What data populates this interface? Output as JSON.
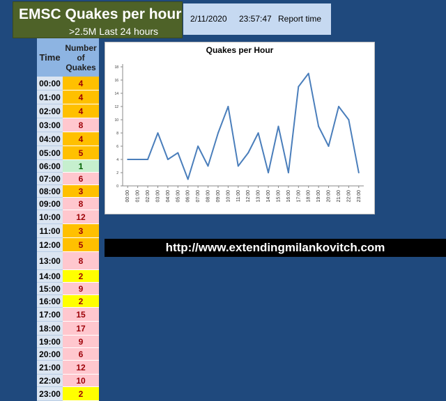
{
  "header": {
    "title": "EMSC Quakes per hour UTC",
    "subtitle": ">2.5M Last 24 hours",
    "report_date": "2/11/2020",
    "report_time": "23:57:47",
    "report_label": "Report time"
  },
  "table": {
    "col_time": "Time",
    "col_count": "Number of Quakes",
    "rows": [
      {
        "time": "00:00",
        "count": "4"
      },
      {
        "time": "01:00",
        "count": "4"
      },
      {
        "time": "02:00",
        "count": "4"
      },
      {
        "time": "03:00",
        "count": "8"
      },
      {
        "time": "04:00",
        "count": "4"
      },
      {
        "time": "05:00",
        "count": "5"
      },
      {
        "time": "06:00",
        "count": "1"
      },
      {
        "time": "07:00",
        "count": "6"
      },
      {
        "time": "08:00",
        "count": "3"
      },
      {
        "time": "09:00",
        "count": "8"
      },
      {
        "time": "10:00",
        "count": "12"
      },
      {
        "time": "11:00",
        "count": "3"
      },
      {
        "time": "12:00",
        "count": "5"
      },
      {
        "time": "13:00",
        "count": "8"
      },
      {
        "time": "14:00",
        "count": "2"
      },
      {
        "time": "15:00",
        "count": "9"
      },
      {
        "time": "16:00",
        "count": "2"
      },
      {
        "time": "17:00",
        "count": "15"
      },
      {
        "time": "18:00",
        "count": "17"
      },
      {
        "time": "19:00",
        "count": "9"
      },
      {
        "time": "20:00",
        "count": "6"
      },
      {
        "time": "21:00",
        "count": "12"
      },
      {
        "time": "22:00",
        "count": "10"
      },
      {
        "time": "23:00",
        "count": "2"
      }
    ]
  },
  "colors": {
    "background": "#1f497d",
    "title_bg": "#4e6228",
    "report_bg": "#c6d9f1",
    "header_cell_bg": "#8db4e2",
    "time_cell_bg": "#dbe5f1",
    "line": "#4a7ebb",
    "tier_orange": "#ffc000",
    "tier_pink": "#ffc7ce",
    "tier_green": "#c6efce",
    "tier_yellow": "#ffff00",
    "text_dark_red": "#9c0006",
    "text_dark_green": "#006100"
  },
  "chart_data": {
    "type": "line",
    "title": "Quakes per Hour",
    "xlabel": "",
    "ylabel": "",
    "categories": [
      "00:00",
      "01:00",
      "02:00",
      "03:00",
      "04:00",
      "05:00",
      "06:00",
      "07:00",
      "08:00",
      "09:00",
      "10:00",
      "11:00",
      "12:00",
      "13:00",
      "14:00",
      "15:00",
      "16:00",
      "17:00",
      "18:00",
      "19:00",
      "20:00",
      "21:00",
      "22:00",
      "23:00"
    ],
    "values": [
      4,
      4,
      4,
      8,
      4,
      5,
      1,
      6,
      3,
      8,
      12,
      3,
      5,
      8,
      2,
      9,
      2,
      15,
      17,
      9,
      6,
      12,
      10,
      2
    ],
    "ylim": [
      0,
      18
    ],
    "yticks": [
      0,
      2,
      4,
      6,
      8,
      10,
      12,
      14,
      16,
      18
    ],
    "grid": false,
    "legend": "none"
  },
  "footer": {
    "url": "http://www.extendingmilankovitch.com"
  }
}
